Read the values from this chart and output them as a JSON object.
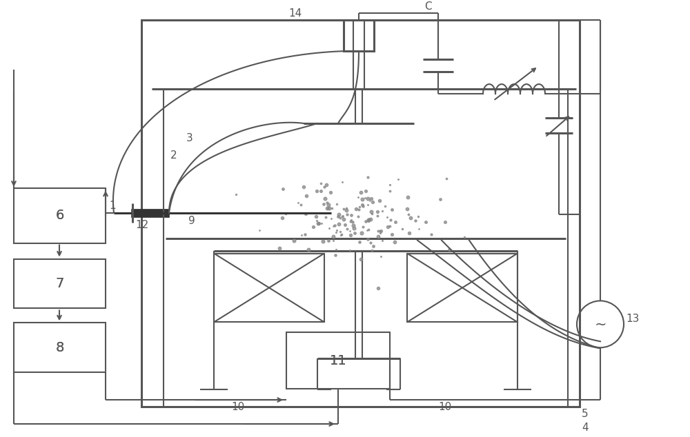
{
  "bg_color": "#ffffff",
  "line_color": "#555555",
  "lw": 1.5,
  "lw2": 2.2,
  "figsize": [
    10.0,
    6.34
  ],
  "dpi": 100
}
